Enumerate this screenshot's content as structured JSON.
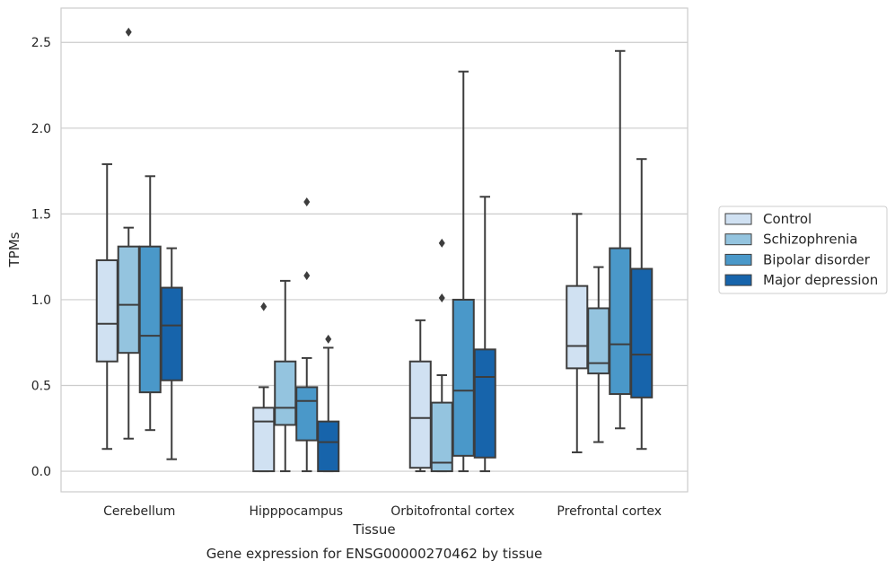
{
  "chart_data": {
    "type": "box",
    "title": "",
    "caption": "Gene expression for ENSG00000270462 by tissue",
    "xlabel": "Tissue",
    "ylabel": "TPMs",
    "categories": [
      "Cerebellum",
      "Hipppocampus",
      "Orbitofrontal cortex",
      "Prefrontal cortex"
    ],
    "ylim": [
      -0.12,
      2.7
    ],
    "yticks": [
      "0.0",
      "0.5",
      "1.0",
      "1.5",
      "2.0",
      "2.5"
    ],
    "ytick_values": [
      0.0,
      0.5,
      1.0,
      1.5,
      2.0,
      2.5
    ],
    "grid": "horizontal",
    "legend_position": "right",
    "series": [
      {
        "name": "Control",
        "color": "#d0e1f2",
        "boxes": [
          {
            "whislo": 0.13,
            "q1": 0.64,
            "med": 0.86,
            "q3": 1.23,
            "whishi": 1.79,
            "fliers": []
          },
          {
            "whislo": 0.0,
            "q1": 0.0,
            "med": 0.29,
            "q3": 0.37,
            "whishi": 0.49,
            "fliers": [
              0.96
            ]
          },
          {
            "whislo": 0.0,
            "q1": 0.02,
            "med": 0.31,
            "q3": 0.64,
            "whishi": 0.88,
            "fliers": []
          },
          {
            "whislo": 0.11,
            "q1": 0.6,
            "med": 0.73,
            "q3": 1.08,
            "whishi": 1.5,
            "fliers": []
          }
        ]
      },
      {
        "name": "Schizophrenia",
        "color": "#94c4df",
        "boxes": [
          {
            "whislo": 0.19,
            "q1": 0.69,
            "med": 0.97,
            "q3": 1.31,
            "whishi": 1.42,
            "fliers": [
              2.56
            ]
          },
          {
            "whislo": 0.0,
            "q1": 0.27,
            "med": 0.37,
            "q3": 0.64,
            "whishi": 1.11,
            "fliers": []
          },
          {
            "whislo": 0.0,
            "q1": 0.0,
            "med": 0.05,
            "q3": 0.4,
            "whishi": 0.56,
            "fliers": [
              1.01,
              1.33
            ]
          },
          {
            "whislo": 0.17,
            "q1": 0.57,
            "med": 0.63,
            "q3": 0.95,
            "whishi": 1.19,
            "fliers": []
          }
        ]
      },
      {
        "name": "Bipolar disorder",
        "color": "#4a98c9",
        "boxes": [
          {
            "whislo": 0.24,
            "q1": 0.46,
            "med": 0.79,
            "q3": 1.31,
            "whishi": 1.72,
            "fliers": []
          },
          {
            "whislo": 0.0,
            "q1": 0.18,
            "med": 0.41,
            "q3": 0.49,
            "whishi": 0.66,
            "fliers": [
              1.14,
              1.57
            ]
          },
          {
            "whislo": 0.0,
            "q1": 0.09,
            "med": 0.47,
            "q3": 1.0,
            "whishi": 2.33,
            "fliers": []
          },
          {
            "whislo": 0.25,
            "q1": 0.45,
            "med": 0.74,
            "q3": 1.3,
            "whishi": 2.45,
            "fliers": []
          }
        ]
      },
      {
        "name": "Major depression",
        "color": "#1764ab",
        "boxes": [
          {
            "whislo": 0.07,
            "q1": 0.53,
            "med": 0.85,
            "q3": 1.07,
            "whishi": 1.3,
            "fliers": []
          },
          {
            "whislo": 0.0,
            "q1": 0.0,
            "med": 0.17,
            "q3": 0.29,
            "whishi": 0.72,
            "fliers": [
              0.77
            ]
          },
          {
            "whislo": 0.0,
            "q1": 0.08,
            "med": 0.55,
            "q3": 0.71,
            "whishi": 1.6,
            "fliers": []
          },
          {
            "whislo": 0.13,
            "q1": 0.43,
            "med": 0.68,
            "q3": 1.18,
            "whishi": 1.82,
            "fliers": []
          }
        ]
      }
    ]
  }
}
